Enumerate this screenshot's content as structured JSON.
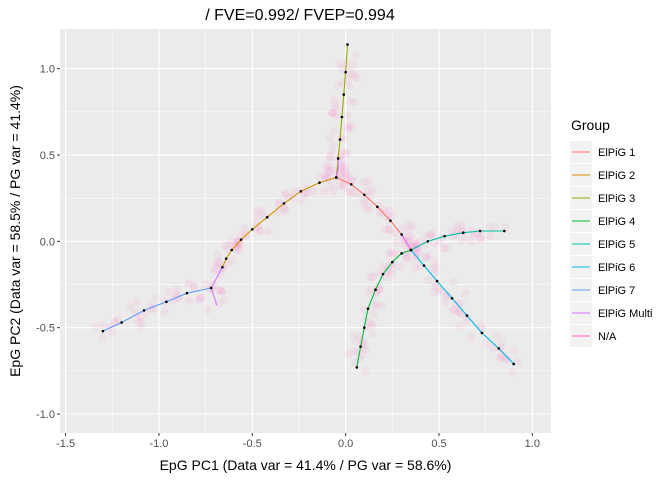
{
  "chart_data": {
    "type": "line",
    "title": "/ FVE=0.992/ FVEP=0.994",
    "xlabel": "EpG PC1 (Data var = 41.4% / PG var = 58.6%)",
    "ylabel": "EpG PC2 (Data var = 58.5% / PG var = 41.4%)",
    "xlim": [
      -1.53,
      1.1
    ],
    "ylim": [
      -1.11,
      1.23
    ],
    "xticks": [
      -1.5,
      -1.0,
      -0.5,
      0.0,
      0.5,
      1.0
    ],
    "xtick_labels": [
      "-1.5",
      "-1.0",
      "-0.5",
      "0.0",
      "0.5",
      "1.0"
    ],
    "yticks": [
      -1.0,
      -0.5,
      0.0,
      0.5,
      1.0
    ],
    "ytick_labels": [
      "-1.0",
      "-0.5",
      "0.0",
      "0.5",
      "1.0"
    ],
    "grid": true,
    "legend": {
      "title": "Group",
      "placement": "right"
    },
    "series": [
      {
        "name": "ElPiG 1",
        "color": "#F8766D",
        "points": [
          [
            -0.05,
            0.37
          ],
          [
            0.03,
            0.33
          ],
          [
            0.1,
            0.27
          ],
          [
            0.17,
            0.2
          ],
          [
            0.24,
            0.12
          ],
          [
            0.3,
            0.04
          ],
          [
            0.35,
            -0.05
          ]
        ]
      },
      {
        "name": "ElPiG 2",
        "color": "#D39200",
        "points": [
          [
            -0.05,
            0.37
          ],
          [
            -0.14,
            0.34
          ],
          [
            -0.24,
            0.29
          ],
          [
            -0.33,
            0.22
          ],
          [
            -0.42,
            0.14
          ],
          [
            -0.5,
            0.07
          ],
          [
            -0.56,
            0.01
          ],
          [
            -0.61,
            -0.05
          ],
          [
            -0.64,
            -0.1
          ],
          [
            -0.66,
            -0.15
          ]
        ]
      },
      {
        "name": "ElPiG 3",
        "color": "#93AA00",
        "points": [
          [
            -0.05,
            0.37
          ],
          [
            -0.04,
            0.48
          ],
          [
            -0.03,
            0.59
          ],
          [
            -0.02,
            0.72
          ],
          [
            -0.01,
            0.85
          ],
          [
            0.0,
            0.98
          ],
          [
            0.01,
            1.14
          ]
        ]
      },
      {
        "name": "ElPiG 4",
        "color": "#00BA38",
        "points": [
          [
            0.35,
            -0.05
          ],
          [
            0.3,
            -0.07
          ],
          [
            0.25,
            -0.12
          ],
          [
            0.2,
            -0.19
          ],
          [
            0.16,
            -0.28
          ],
          [
            0.12,
            -0.39
          ],
          [
            0.1,
            -0.5
          ],
          [
            0.08,
            -0.61
          ],
          [
            0.06,
            -0.73
          ]
        ]
      },
      {
        "name": "ElPiG 5",
        "color": "#00C19F",
        "points": [
          [
            0.35,
            -0.05
          ],
          [
            0.44,
            0.0
          ],
          [
            0.53,
            0.03
          ],
          [
            0.63,
            0.05
          ],
          [
            0.72,
            0.06
          ],
          [
            0.85,
            0.06
          ]
        ]
      },
      {
        "name": "ElPiG 6",
        "color": "#00B9E3",
        "points": [
          [
            0.35,
            -0.05
          ],
          [
            0.42,
            -0.14
          ],
          [
            0.49,
            -0.23
          ],
          [
            0.57,
            -0.33
          ],
          [
            0.65,
            -0.43
          ],
          [
            0.73,
            -0.53
          ],
          [
            0.82,
            -0.62
          ],
          [
            0.9,
            -0.71
          ]
        ]
      },
      {
        "name": "ElPiG 7",
        "color": "#619CFF",
        "points": [
          [
            -0.72,
            -0.27
          ],
          [
            -0.85,
            -0.3
          ],
          [
            -0.96,
            -0.35
          ],
          [
            -1.08,
            -0.4
          ],
          [
            -1.2,
            -0.47
          ],
          [
            -1.3,
            -0.52
          ]
        ]
      },
      {
        "name": "ElPiG Multi",
        "color": "#DB72FB",
        "segments": [
          [
            [
              -0.05,
              0.37
            ],
            [
              -0.04,
              0.42
            ],
            [
              -0.04,
              0.48
            ]
          ],
          [
            [
              -0.66,
              -0.15
            ],
            [
              -0.72,
              -0.27
            ]
          ],
          [
            [
              -0.72,
              -0.27
            ],
            [
              -0.69,
              -0.37
            ]
          ],
          [
            [
              0.3,
              0.04
            ],
            [
              0.35,
              -0.05
            ]
          ]
        ]
      },
      {
        "name": "N/A",
        "color": "#FF61C3",
        "points": []
      }
    ]
  }
}
